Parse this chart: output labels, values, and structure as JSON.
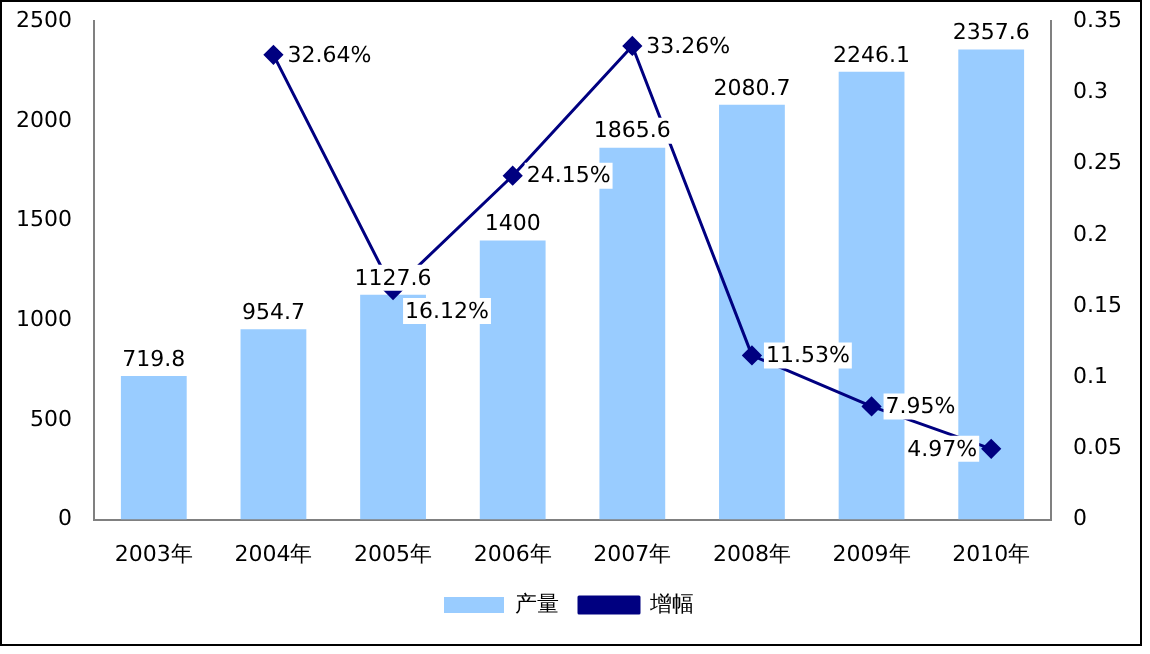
{
  "chart_data": {
    "type": "bar",
    "categories": [
      "2003年",
      "2004年",
      "2005年",
      "2006年",
      "2007年",
      "2008年",
      "2009年",
      "2010年"
    ],
    "series": [
      {
        "name": "产量",
        "color": "#99ccff",
        "values": [
          719.8,
          954.7,
          1127.6,
          1400,
          1865.6,
          2080.7,
          2246.1,
          2357.6
        ],
        "value_labels": [
          "719.8",
          "954.7",
          "1127.6",
          "1400",
          "1865.6",
          "2080.7",
          "2246.1",
          "2357.6"
        ]
      },
      {
        "name": "增幅",
        "type": "line",
        "axis": "y2",
        "color": "#000080",
        "marker": "diamond",
        "values": [
          null,
          0.3264,
          0.1612,
          0.2415,
          0.3326,
          0.1153,
          0.0795,
          0.0497
        ],
        "value_labels": [
          null,
          "32.64%",
          "16.12%",
          "24.15%",
          "33.26%",
          "11.53%",
          "7.95%",
          "4.97%"
        ]
      }
    ],
    "ylim": [
      0,
      2500
    ],
    "yticks": [
      0,
      500,
      1000,
      1500,
      2000,
      2500
    ],
    "y2lim": [
      0,
      0.35
    ],
    "y2ticks": [
      0,
      0.05,
      0.1,
      0.15,
      0.2,
      0.25,
      0.3,
      0.35
    ],
    "grid": false,
    "legend": "bottom"
  }
}
